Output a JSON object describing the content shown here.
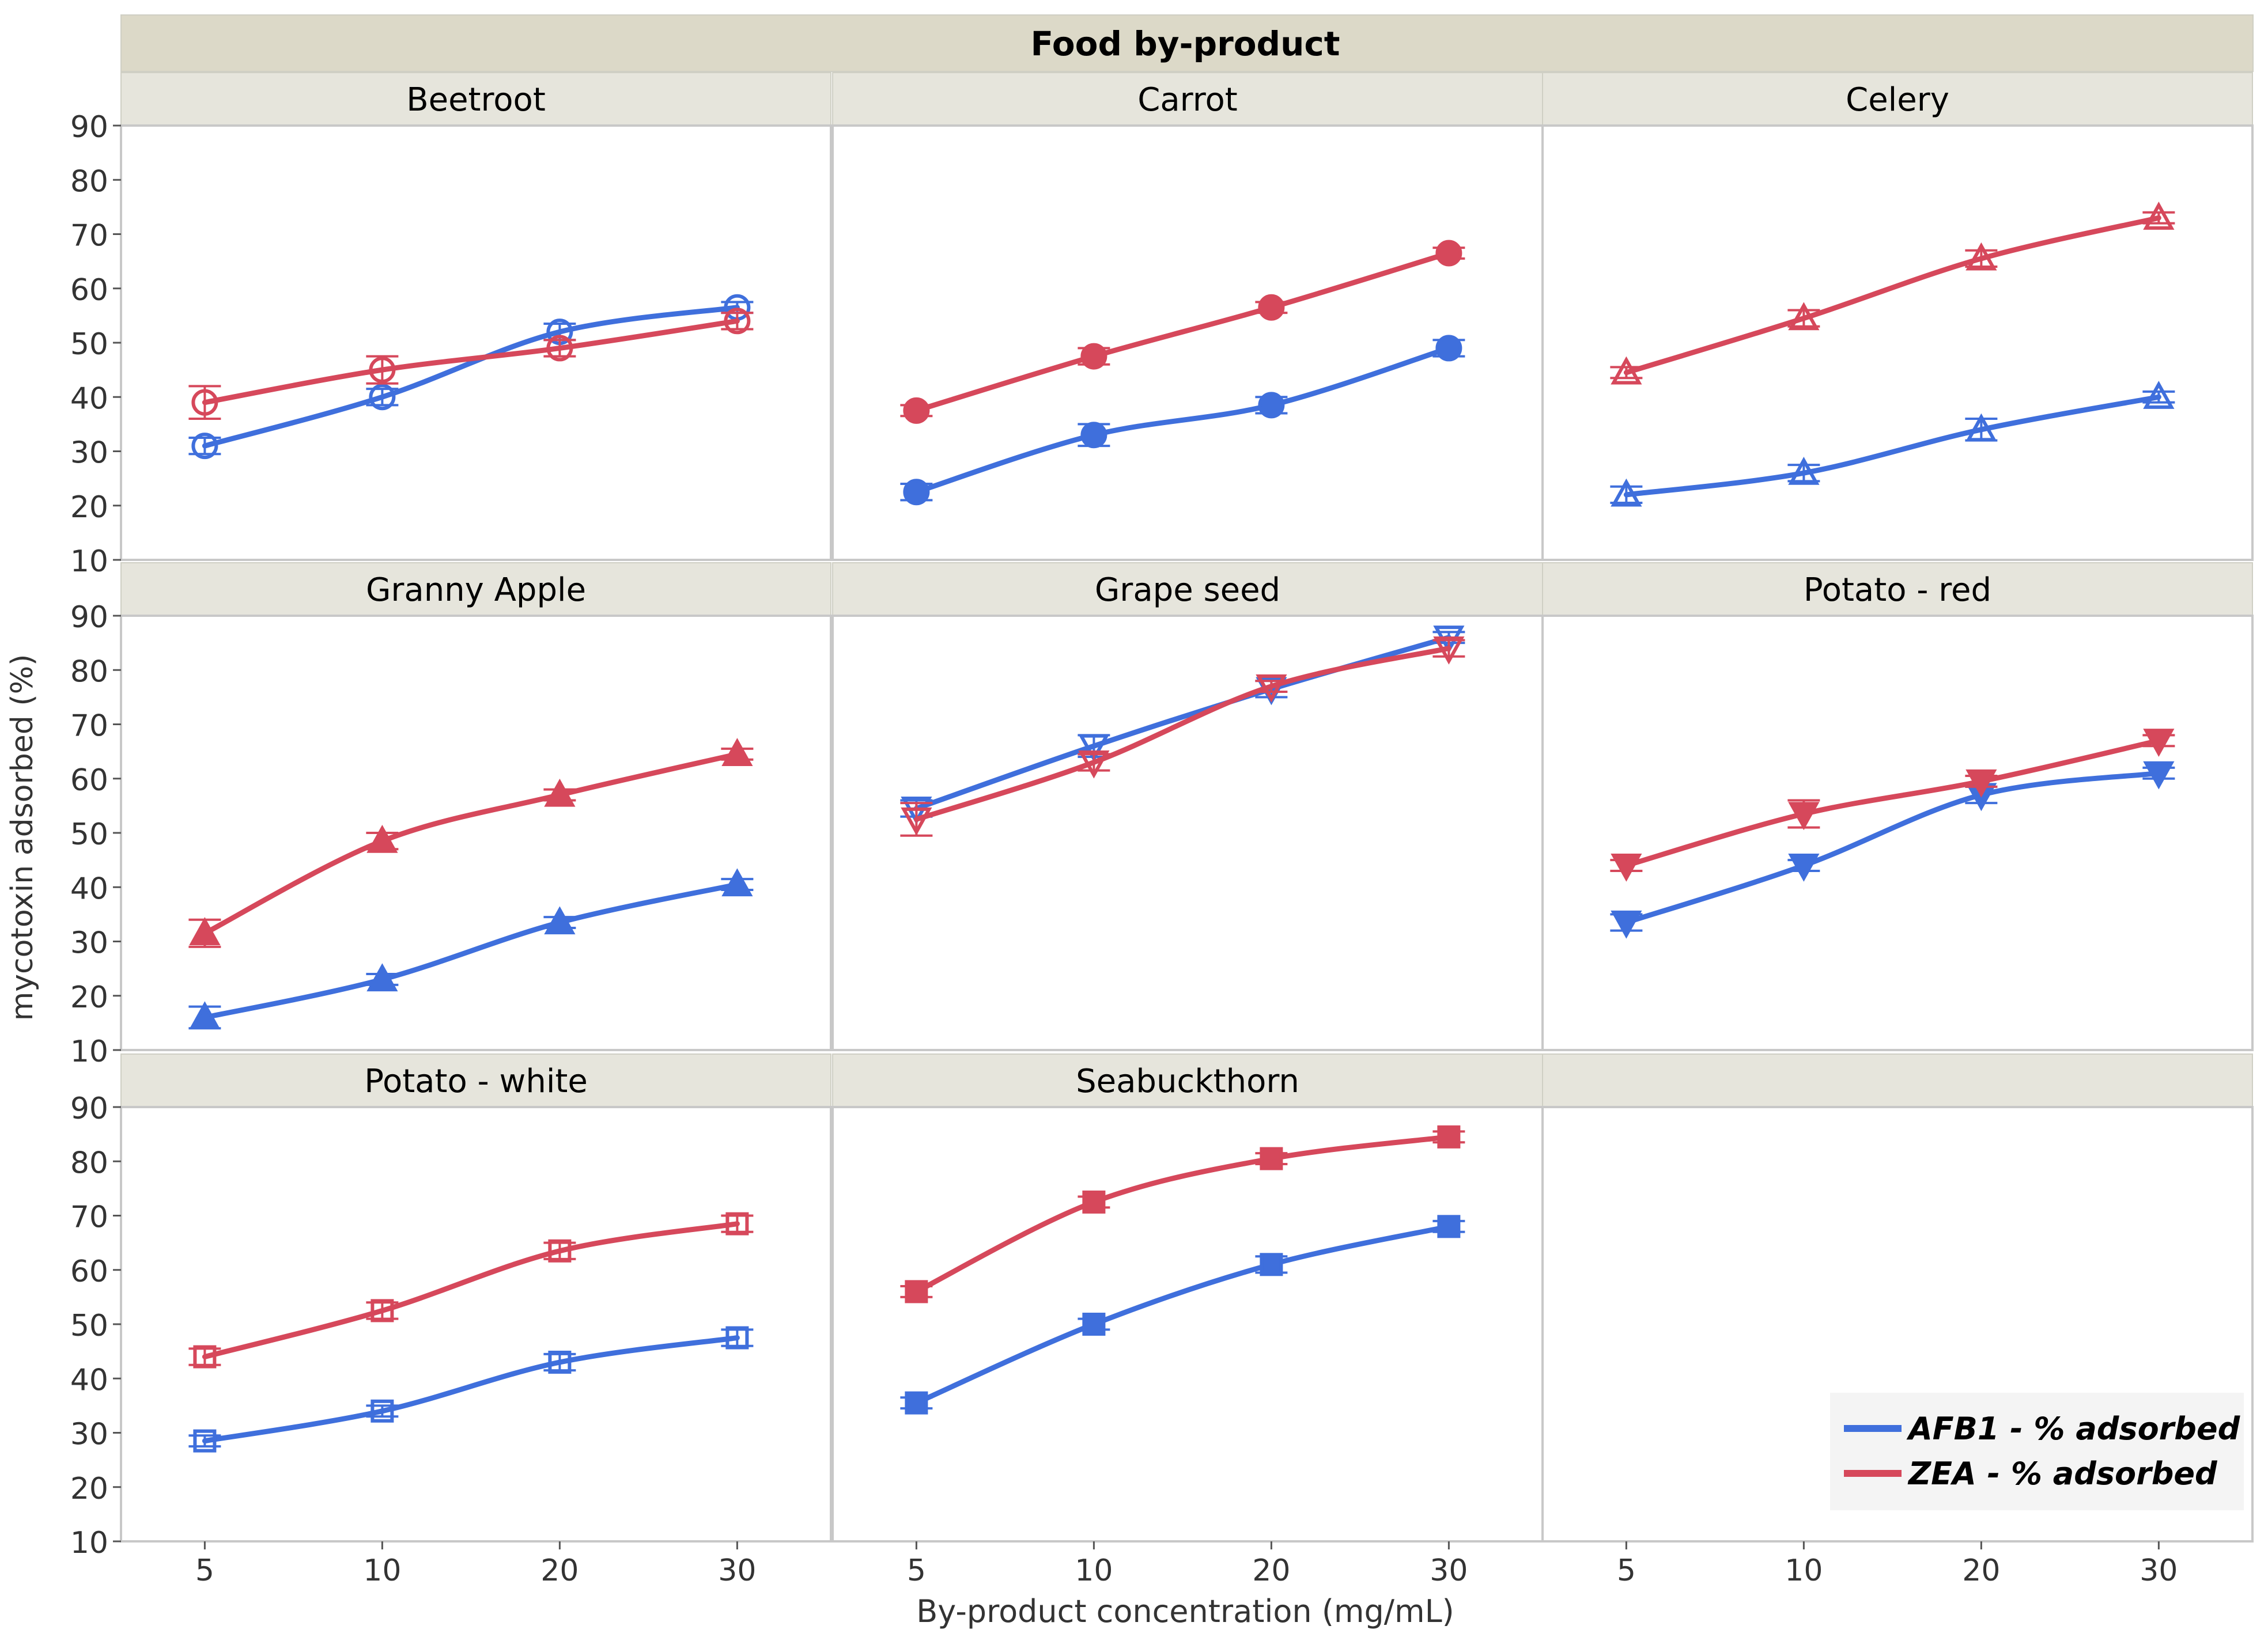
{
  "chart_data": {
    "type": "line",
    "title": "Food by-product",
    "xlabel": "By-product concentration (mg/mL)",
    "ylabel": "mycotoxin adsorbed (%)",
    "x_categories": [
      "5",
      "10",
      "20",
      "30"
    ],
    "y_ticks": [
      "10",
      "20",
      "30",
      "40",
      "50",
      "60",
      "70",
      "80",
      "90"
    ],
    "ylim": [
      10,
      90
    ],
    "grid": false,
    "legend_position": "bottom-right",
    "series_styles": [
      {
        "name": "AFB1 - % adsorbed",
        "color": "#3f6fdc"
      },
      {
        "name": "ZEA - % adsorbed",
        "color": "#d6485b"
      }
    ],
    "panels": [
      {
        "name": "Beetroot",
        "marker": "circle-open",
        "series": [
          {
            "name": "AFB1 - % adsorbed",
            "values": [
              31,
              40,
              52,
              56.5
            ],
            "errors": [
              1.5,
              1.5,
              1.5,
              1
            ]
          },
          {
            "name": "ZEA - % adsorbed",
            "values": [
              39,
              45,
              49,
              54
            ],
            "errors": [
              3,
              2.5,
              1.5,
              1.5
            ]
          }
        ]
      },
      {
        "name": "Carrot",
        "marker": "circle-filled",
        "series": [
          {
            "name": "AFB1 - % adsorbed",
            "values": [
              22.5,
              33,
              38.5,
              49
            ],
            "errors": [
              1.5,
              2,
              1.5,
              1.5
            ]
          },
          {
            "name": "ZEA - % adsorbed",
            "values": [
              37.5,
              47.5,
              56.5,
              66.5
            ],
            "errors": [
              1,
              1.5,
              1,
              1
            ]
          }
        ]
      },
      {
        "name": "Celery",
        "marker": "triangle-open",
        "series": [
          {
            "name": "AFB1 - % adsorbed",
            "values": [
              22,
              26,
              34,
              40
            ],
            "errors": [
              1.5,
              1.5,
              2,
              1
            ]
          },
          {
            "name": "ZEA - % adsorbed",
            "values": [
              44.5,
              54.5,
              65.5,
              73
            ],
            "errors": [
              1,
              1.5,
              1.5,
              1
            ]
          }
        ]
      },
      {
        "name": "Granny Apple",
        "marker": "triangle-filled",
        "series": [
          {
            "name": "AFB1 - % adsorbed",
            "values": [
              16,
              23,
              33.5,
              40.5
            ],
            "errors": [
              2,
              1,
              1,
              1
            ]
          },
          {
            "name": "ZEA - % adsorbed",
            "values": [
              31.5,
              48.5,
              57,
              64.5
            ],
            "errors": [
              2.5,
              1.5,
              1,
              1
            ]
          }
        ]
      },
      {
        "name": "Grape seed",
        "marker": "triangle-down-open",
        "series": [
          {
            "name": "AFB1 - % adsorbed",
            "values": [
              54.5,
              66,
              76.5,
              86
            ],
            "errors": [
              1.5,
              2,
              1.5,
              1
            ]
          },
          {
            "name": "ZEA - % adsorbed",
            "values": [
              52.5,
              63,
              77,
              84
            ],
            "errors": [
              3,
              1.5,
              1,
              1.5
            ]
          }
        ]
      },
      {
        "name": "Potato - red",
        "marker": "triangle-down-filled",
        "series": [
          {
            "name": "AFB1 - % adsorbed",
            "values": [
              33.5,
              44,
              57,
              61
            ],
            "errors": [
              1.5,
              1,
              1.5,
              1
            ]
          },
          {
            "name": "ZEA - % adsorbed",
            "values": [
              44,
              53.5,
              59.5,
              67
            ],
            "errors": [
              1,
              2.5,
              1,
              1
            ]
          }
        ]
      },
      {
        "name": "Potato - white",
        "marker": "square-open",
        "series": [
          {
            "name": "AFB1 - % adsorbed",
            "values": [
              28.5,
              34,
              43,
              47.5
            ],
            "errors": [
              1,
              1,
              1.5,
              1.5
            ]
          },
          {
            "name": "ZEA - % adsorbed",
            "values": [
              44,
              52.5,
              63.5,
              68.5
            ],
            "errors": [
              1.5,
              1.5,
              1.5,
              1.5
            ]
          }
        ]
      },
      {
        "name": "Seabuckthorn",
        "marker": "square-filled",
        "series": [
          {
            "name": "AFB1 - % adsorbed",
            "values": [
              35.5,
              50,
              61,
              68
            ],
            "errors": [
              1,
              1,
              1.5,
              1
            ]
          },
          {
            "name": "ZEA - % adsorbed",
            "values": [
              56,
              72.5,
              80.5,
              84.5
            ],
            "errors": [
              1,
              1,
              1,
              1
            ]
          }
        ]
      },
      {
        "name": "",
        "marker": "none",
        "series": []
      }
    ]
  }
}
